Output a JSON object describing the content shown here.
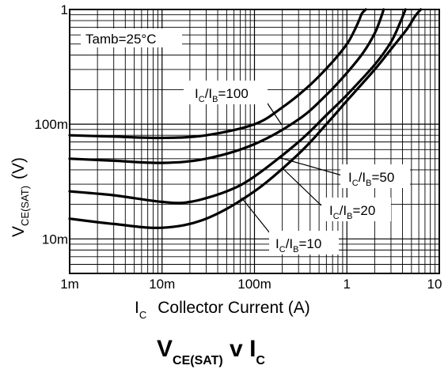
{
  "chart_data": {
    "type": "line",
    "title": {
      "main": "V",
      "main_sub": "CE(SAT)",
      "middle": " v I",
      "end_sub": "C"
    },
    "xlabel": {
      "main": "I",
      "sub": "C",
      "rest": "Collector Current (A)"
    },
    "ylabel": {
      "main": "V",
      "sub": "CE(SAT)",
      "rest": "(V)"
    },
    "x_scale": "log",
    "y_scale": "log",
    "xlim": [
      0.001,
      10
    ],
    "ylim": [
      0.005,
      1
    ],
    "grid": true,
    "x_ticks": [
      {
        "value": 0.001,
        "label": "1m"
      },
      {
        "value": 0.01,
        "label": "10m"
      },
      {
        "value": 0.1,
        "label": "100m"
      },
      {
        "value": 1,
        "label": "1"
      },
      {
        "value": 10,
        "label": "10"
      }
    ],
    "y_ticks": [
      {
        "value": 0.01,
        "label": "10m"
      },
      {
        "value": 0.1,
        "label": "100m"
      },
      {
        "value": 1,
        "label": "1"
      }
    ],
    "annotation": "Tamb=25°C",
    "series": [
      {
        "name": "IC/IB=100",
        "label": {
          "pre": "I",
          "sub1": "C",
          "mid": "/I",
          "sub2": "B",
          "post": "=100"
        },
        "x": [
          0.001,
          0.003,
          0.01,
          0.03,
          0.1,
          0.2,
          0.4,
          0.7,
          1.0,
          1.2,
          1.35,
          1.45,
          1.6
        ],
        "y": [
          0.08,
          0.078,
          0.076,
          0.08,
          0.1,
          0.14,
          0.22,
          0.35,
          0.5,
          0.65,
          0.8,
          0.92,
          1.0
        ]
      },
      {
        "name": "IC/IB=50",
        "label": {
          "pre": "I",
          "sub1": "C",
          "mid": "/I",
          "sub2": "B",
          "post": "=50"
        },
        "x": [
          0.001,
          0.003,
          0.01,
          0.03,
          0.1,
          0.3,
          0.6,
          1.0,
          1.5,
          2.0,
          2.3,
          2.5
        ],
        "y": [
          0.05,
          0.048,
          0.046,
          0.05,
          0.067,
          0.11,
          0.18,
          0.28,
          0.42,
          0.62,
          0.82,
          1.0
        ]
      },
      {
        "name": "IC/IB=20",
        "label": {
          "pre": "I",
          "sub1": "C",
          "mid": "/I",
          "sub2": "B",
          "post": "=20"
        },
        "x": [
          0.001,
          0.003,
          0.01,
          0.02,
          0.05,
          0.1,
          0.3,
          0.6,
          1.0,
          2.0,
          3.0,
          3.8,
          4.3
        ],
        "y": [
          0.026,
          0.024,
          0.021,
          0.021,
          0.026,
          0.035,
          0.07,
          0.12,
          0.18,
          0.33,
          0.52,
          0.78,
          1.0
        ]
      },
      {
        "name": "IC/IB=10",
        "label": {
          "pre": "I",
          "sub1": "C",
          "mid": "/I",
          "sub2": "B",
          "post": "=10"
        },
        "x": [
          0.001,
          0.003,
          0.01,
          0.03,
          0.1,
          0.3,
          0.6,
          1.0,
          2.0,
          3.0,
          4.5,
          5.5,
          6.3
        ],
        "y": [
          0.015,
          0.0135,
          0.0125,
          0.015,
          0.026,
          0.055,
          0.1,
          0.16,
          0.3,
          0.45,
          0.68,
          0.88,
          1.0
        ]
      }
    ]
  }
}
